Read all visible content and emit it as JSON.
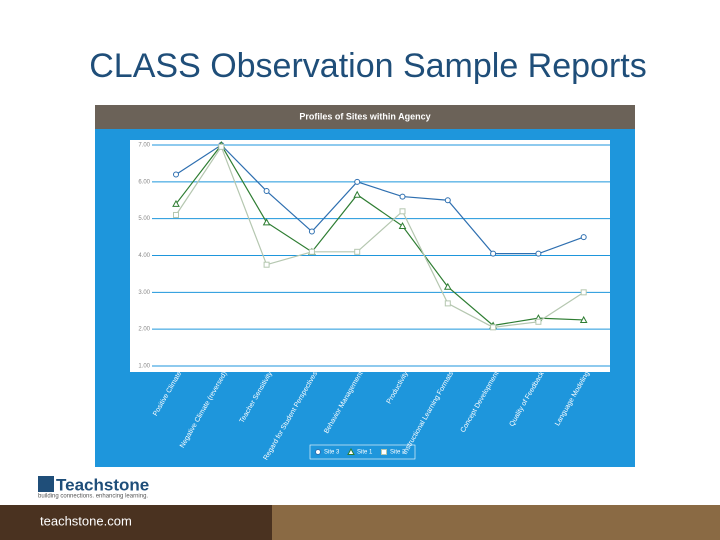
{
  "slide": {
    "title": "CLASS Observation Sample Reports",
    "logo": "Teachstone",
    "tagline": "building connections. enhancing learning.",
    "footer": "teachstone.com"
  },
  "chart_data": {
    "type": "line",
    "title": "Profiles of Sites within Agency",
    "categories": [
      "Positive Climate",
      "Negative Climate (reversed)",
      "Teacher Sensitivity",
      "Regard for Student Perspectives",
      "Behavior Management",
      "Productivity",
      "Instructional Learning Formats",
      "Concept Development",
      "Quality of Feedback",
      "Language Modeling"
    ],
    "series": [
      {
        "name": "Site 3",
        "color": "#2e6fb0",
        "marker": "circle",
        "values": [
          6.2,
          7.0,
          5.75,
          4.65,
          6.0,
          5.6,
          5.5,
          4.05,
          4.05,
          4.5
        ]
      },
      {
        "name": "Site 1",
        "color": "#2e7d32",
        "marker": "triangle",
        "values": [
          5.4,
          7.0,
          4.9,
          4.1,
          5.65,
          4.8,
          3.15,
          2.1,
          2.3,
          2.25
        ]
      },
      {
        "name": "Site 2",
        "color": "#b5c7b0",
        "marker": "square",
        "values": [
          5.1,
          6.95,
          3.75,
          4.1,
          4.1,
          5.2,
          2.7,
          2.05,
          2.2,
          3.0
        ]
      }
    ],
    "ylim": [
      1,
      7
    ],
    "yticks": [
      {
        "value": 1,
        "label": "1.00"
      },
      {
        "value": 2,
        "label": "2.00"
      },
      {
        "value": 3,
        "label": "3.00"
      },
      {
        "value": 4,
        "label": "4.00"
      },
      {
        "value": 5,
        "label": "5.00"
      },
      {
        "value": 6,
        "label": "6.00"
      },
      {
        "value": 7,
        "label": "7.00"
      }
    ],
    "grid": true,
    "legend": "bottom"
  }
}
